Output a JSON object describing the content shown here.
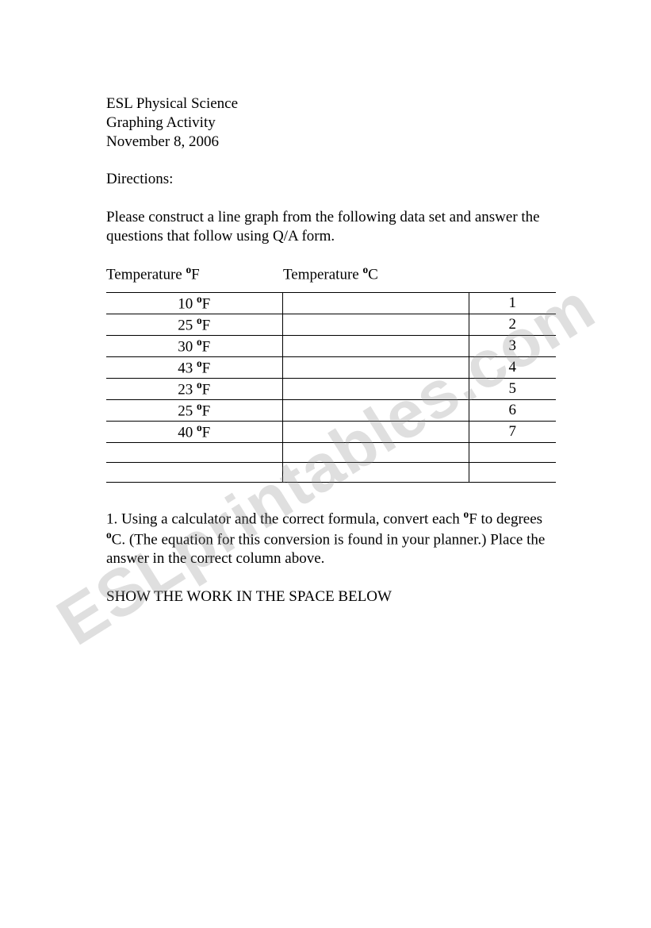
{
  "header": {
    "line1": "ESL Physical Science",
    "line2": "Graphing Activity",
    "line3": "November 8, 2006"
  },
  "directions": {
    "label": "Directions:",
    "text": "Please construct a line graph from the following data set and answer the questions that follow using Q/A form."
  },
  "table": {
    "col1_header_prefix": "Temperature ",
    "col1_header_unit": "F",
    "col2_header_prefix": "Temperature ",
    "col2_header_unit": "C",
    "rows": [
      {
        "f": "10 ",
        "unit": "F",
        "c": "",
        "n": "1"
      },
      {
        "f": "25 ",
        "unit": "F",
        "c": "",
        "n": "2"
      },
      {
        "f": "30 ",
        "unit": "F",
        "c": "",
        "n": "3"
      },
      {
        "f": "43 ",
        "unit": "F",
        "c": "",
        "n": "4"
      },
      {
        "f": "23 ",
        "unit": "F",
        "c": "",
        "n": "5"
      },
      {
        "f": "25 ",
        "unit": "F",
        "c": "",
        "n": "6"
      },
      {
        "f": "40 ",
        "unit": "F",
        "c": "",
        "n": "7"
      },
      {
        "f": "",
        "unit": "",
        "c": "",
        "n": ""
      },
      {
        "f": "",
        "unit": "",
        "c": "",
        "n": ""
      }
    ]
  },
  "question1": {
    "prefix": "1.  Using a calculator and the correct formula, convert each ",
    "unit1": "F",
    "mid": " to degrees ",
    "unit2": "C",
    "suffix": ". (The equation for this conversion is found in your planner.) Place the answer in the correct column above."
  },
  "show_work": "SHOW THE WORK IN THE SPACE BELOW",
  "watermark": "ESLprintables.com",
  "degree_symbol": "o"
}
